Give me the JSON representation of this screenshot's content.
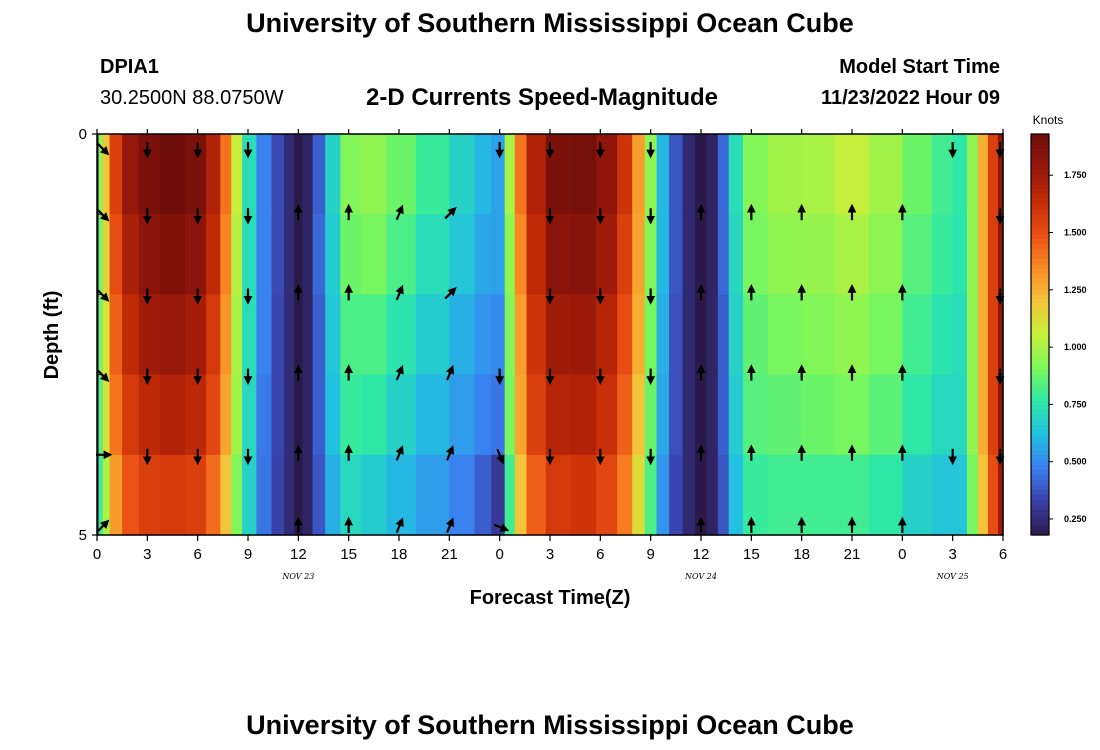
{
  "header": {
    "title_top": "University of Southern Mississippi Ocean Cube",
    "station_id": "DPIA1",
    "coordinates": "30.2500N  88.0750W",
    "subtitle": "2-D Currents Speed-Magnitude",
    "model_label": "Model Start Time",
    "model_time": "11/23/2022 Hour 09",
    "title_bottom": "University of Southern Mississippi Ocean Cube"
  },
  "chart_data": {
    "type": "heatmap",
    "title": "2-D Currents Speed-Magnitude",
    "xlabel": "Forecast Time(Z)",
    "ylabel": "Depth (ft)",
    "x_range_hours": [
      0,
      54
    ],
    "y_range_ft": [
      0,
      5
    ],
    "y_ticks": [
      "0",
      "5"
    ],
    "x_tick_labels": [
      "0",
      "3",
      "6",
      "9",
      "12",
      "15",
      "18",
      "21",
      "0",
      "3",
      "6",
      "9",
      "12",
      "15",
      "18",
      "21",
      "0",
      "3",
      "6"
    ],
    "date_labels": [
      {
        "label": "NOV 23",
        "hour": 12
      },
      {
        "label": "NOV 24",
        "hour": 36
      },
      {
        "label": "NOV 25",
        "hour": 51
      }
    ],
    "colorbar": {
      "unit": "Knots",
      "min": 0.18,
      "max": 1.93,
      "ticks": [
        "0.250",
        "0.500",
        "0.750",
        "1.000",
        "1.250",
        "1.500",
        "1.750"
      ],
      "tick_values": [
        0.25,
        0.5,
        0.75,
        1.0,
        1.25,
        1.5,
        1.75
      ],
      "colors": [
        "#2a1a4a",
        "#3b3fa8",
        "#3a7ef0",
        "#22c0e0",
        "#2ee8a5",
        "#7cf75a",
        "#c8ef3a",
        "#f2c43a",
        "#fa8a25",
        "#e94e13",
        "#c42b06",
        "#94170b",
        "#6e0e0a"
      ]
    },
    "depth_rows": [
      0.5,
      1.5,
      2.5,
      3.5,
      4.5
    ],
    "speed_knots": {
      "columns": [
        {
          "h": 0.0,
          "v": [
            0.25,
            0.25,
            0.25,
            0.25,
            0.25
          ]
        },
        {
          "h": 0.2,
          "v": [
            0.95,
            0.9,
            0.9,
            0.85,
            0.8
          ]
        },
        {
          "h": 0.5,
          "v": [
            1.2,
            1.15,
            1.1,
            1.1,
            1.0
          ]
        },
        {
          "h": 1.0,
          "v": [
            1.55,
            1.5,
            1.45,
            1.4,
            1.3
          ]
        },
        {
          "h": 2.0,
          "v": [
            1.78,
            1.72,
            1.65,
            1.58,
            1.48
          ]
        },
        {
          "h": 3.0,
          "v": [
            1.88,
            1.82,
            1.75,
            1.66,
            1.55
          ]
        },
        {
          "h": 4.5,
          "v": [
            1.93,
            1.86,
            1.78,
            1.7,
            1.58
          ]
        },
        {
          "h": 6.0,
          "v": [
            1.88,
            1.82,
            1.74,
            1.66,
            1.55
          ]
        },
        {
          "h": 7.0,
          "v": [
            1.7,
            1.65,
            1.58,
            1.52,
            1.42
          ]
        },
        {
          "h": 7.7,
          "v": [
            1.4,
            1.36,
            1.32,
            1.28,
            1.2
          ]
        },
        {
          "h": 8.3,
          "v": [
            1.05,
            1.02,
            1.0,
            0.98,
            0.92
          ]
        },
        {
          "h": 9.0,
          "v": [
            0.72,
            0.72,
            0.72,
            0.7,
            0.68
          ]
        },
        {
          "h": 10.0,
          "v": [
            0.48,
            0.48,
            0.48,
            0.46,
            0.45
          ]
        },
        {
          "h": 10.8,
          "v": [
            0.35,
            0.35,
            0.34,
            0.34,
            0.33
          ]
        },
        {
          "h": 11.5,
          "v": [
            0.25,
            0.25,
            0.25,
            0.25,
            0.25
          ]
        },
        {
          "h": 12.0,
          "v": [
            0.18,
            0.18,
            0.18,
            0.18,
            0.18
          ]
        },
        {
          "h": 12.5,
          "v": [
            0.22,
            0.22,
            0.22,
            0.22,
            0.22
          ]
        },
        {
          "h": 13.2,
          "v": [
            0.4,
            0.42,
            0.4,
            0.4,
            0.38
          ]
        },
        {
          "h": 14.0,
          "v": [
            0.68,
            0.66,
            0.64,
            0.62,
            0.58
          ]
        },
        {
          "h": 15.0,
          "v": [
            0.92,
            0.88,
            0.82,
            0.78,
            0.7
          ]
        },
        {
          "h": 16.5,
          "v": [
            0.95,
            0.9,
            0.82,
            0.76,
            0.66
          ]
        },
        {
          "h": 18.0,
          "v": [
            0.88,
            0.82,
            0.74,
            0.68,
            0.6
          ]
        },
        {
          "h": 20.0,
          "v": [
            0.78,
            0.72,
            0.66,
            0.6,
            0.54
          ]
        },
        {
          "h": 22.0,
          "v": [
            0.68,
            0.64,
            0.58,
            0.54,
            0.48
          ]
        },
        {
          "h": 23.0,
          "v": [
            0.6,
            0.56,
            0.52,
            0.48,
            0.4
          ]
        },
        {
          "h": 24.0,
          "v": [
            0.55,
            0.55,
            0.5,
            0.45,
            0.3
          ]
        },
        {
          "h": 24.6,
          "v": [
            1.0,
            0.95,
            0.92,
            0.9,
            0.8
          ]
        },
        {
          "h": 25.2,
          "v": [
            1.4,
            1.35,
            1.3,
            1.28,
            1.2
          ]
        },
        {
          "h": 26.0,
          "v": [
            1.7,
            1.65,
            1.6,
            1.55,
            1.45
          ]
        },
        {
          "h": 27.5,
          "v": [
            1.88,
            1.82,
            1.75,
            1.68,
            1.58
          ]
        },
        {
          "h": 29.0,
          "v": [
            1.9,
            1.84,
            1.76,
            1.7,
            1.6
          ]
        },
        {
          "h": 30.5,
          "v": [
            1.8,
            1.75,
            1.68,
            1.62,
            1.52
          ]
        },
        {
          "h": 31.5,
          "v": [
            1.6,
            1.55,
            1.5,
            1.45,
            1.38
          ]
        },
        {
          "h": 32.3,
          "v": [
            1.3,
            1.28,
            1.25,
            1.2,
            1.12
          ]
        },
        {
          "h": 33.0,
          "v": [
            0.95,
            0.92,
            0.9,
            0.88,
            0.82
          ]
        },
        {
          "h": 33.7,
          "v": [
            0.6,
            0.6,
            0.58,
            0.56,
            0.52
          ]
        },
        {
          "h": 34.5,
          "v": [
            0.38,
            0.38,
            0.36,
            0.36,
            0.34
          ]
        },
        {
          "h": 35.3,
          "v": [
            0.24,
            0.24,
            0.24,
            0.24,
            0.24
          ]
        },
        {
          "h": 36.0,
          "v": [
            0.18,
            0.18,
            0.18,
            0.18,
            0.18
          ]
        },
        {
          "h": 36.7,
          "v": [
            0.22,
            0.22,
            0.22,
            0.22,
            0.22
          ]
        },
        {
          "h": 37.3,
          "v": [
            0.42,
            0.42,
            0.4,
            0.4,
            0.38
          ]
        },
        {
          "h": 38.0,
          "v": [
            0.72,
            0.7,
            0.68,
            0.66,
            0.62
          ]
        },
        {
          "h": 39.0,
          "v": [
            0.92,
            0.9,
            0.86,
            0.84,
            0.78
          ]
        },
        {
          "h": 41.0,
          "v": [
            0.98,
            0.95,
            0.9,
            0.86,
            0.8
          ]
        },
        {
          "h": 43.0,
          "v": [
            1.0,
            0.96,
            0.92,
            0.88,
            0.8
          ]
        },
        {
          "h": 45.0,
          "v": [
            1.05,
            1.0,
            0.95,
            0.9,
            0.8
          ]
        },
        {
          "h": 47.0,
          "v": [
            0.98,
            0.94,
            0.9,
            0.85,
            0.76
          ]
        },
        {
          "h": 49.0,
          "v": [
            0.88,
            0.84,
            0.8,
            0.76,
            0.68
          ]
        },
        {
          "h": 50.5,
          "v": [
            0.8,
            0.78,
            0.74,
            0.7,
            0.64
          ]
        },
        {
          "h": 51.5,
          "v": [
            0.76,
            0.74,
            0.72,
            0.7,
            0.64
          ]
        },
        {
          "h": 52.2,
          "v": [
            0.95,
            0.95,
            0.95,
            0.95,
            0.9
          ]
        },
        {
          "h": 52.8,
          "v": [
            1.25,
            1.25,
            1.25,
            1.25,
            1.2
          ]
        },
        {
          "h": 53.4,
          "v": [
            1.55,
            1.55,
            1.55,
            1.55,
            1.5
          ]
        },
        {
          "h": 54.0,
          "v": [
            1.8,
            1.8,
            1.8,
            1.8,
            1.75
          ]
        }
      ]
    },
    "vector_rows_ft": [
      0.1,
      1.0,
      2.0,
      3.0,
      4.0,
      4.9
    ],
    "vectors": [
      {
        "hour": 0,
        "dirs": [
          "SE",
          "SE",
          "SE",
          "SE",
          "E",
          "NE"
        ]
      },
      {
        "hour": 3,
        "dirs": [
          "S",
          "S",
          "S",
          "S",
          "S",
          null
        ]
      },
      {
        "hour": 6,
        "dirs": [
          "S",
          "S",
          "S",
          "S",
          "S",
          null
        ]
      },
      {
        "hour": 9,
        "dirs": [
          "S",
          "S",
          "S",
          "S",
          "S",
          null
        ]
      },
      {
        "hour": 12,
        "dirs": [
          null,
          "N",
          "N",
          "N",
          "N",
          "N"
        ]
      },
      {
        "hour": 15,
        "dirs": [
          null,
          "N",
          "N",
          "N",
          "N",
          "N"
        ]
      },
      {
        "hour": 18,
        "dirs": [
          null,
          "NNE",
          "NNE",
          "NNE",
          "NNE",
          "NNE"
        ]
      },
      {
        "hour": 21,
        "dirs": [
          null,
          "NE",
          "NE",
          "NNE",
          "NNE",
          "NNE"
        ]
      },
      {
        "hour": 24,
        "dirs": [
          "S",
          null,
          null,
          "S",
          "SSE",
          "ESE"
        ]
      },
      {
        "hour": 27,
        "dirs": [
          "S",
          "S",
          "S",
          "S",
          "S",
          null
        ]
      },
      {
        "hour": 30,
        "dirs": [
          "S",
          "S",
          "S",
          "S",
          "S",
          null
        ]
      },
      {
        "hour": 33,
        "dirs": [
          "S",
          "S",
          "S",
          "S",
          "S",
          null
        ]
      },
      {
        "hour": 36,
        "dirs": [
          null,
          "N",
          "N",
          "N",
          "N",
          "N"
        ]
      },
      {
        "hour": 39,
        "dirs": [
          null,
          "N",
          "N",
          "N",
          "N",
          "N"
        ]
      },
      {
        "hour": 42,
        "dirs": [
          null,
          "N",
          "N",
          "N",
          "N",
          "N"
        ]
      },
      {
        "hour": 45,
        "dirs": [
          null,
          "N",
          "N",
          "N",
          "N",
          "N"
        ]
      },
      {
        "hour": 48,
        "dirs": [
          null,
          "N",
          "N",
          "N",
          "N",
          "N"
        ]
      },
      {
        "hour": 51,
        "dirs": [
          "S",
          null,
          null,
          null,
          "S",
          null
        ]
      },
      {
        "hour": 54,
        "dirs": [
          "S",
          "S",
          "S",
          "S",
          "S",
          null
        ]
      }
    ]
  }
}
